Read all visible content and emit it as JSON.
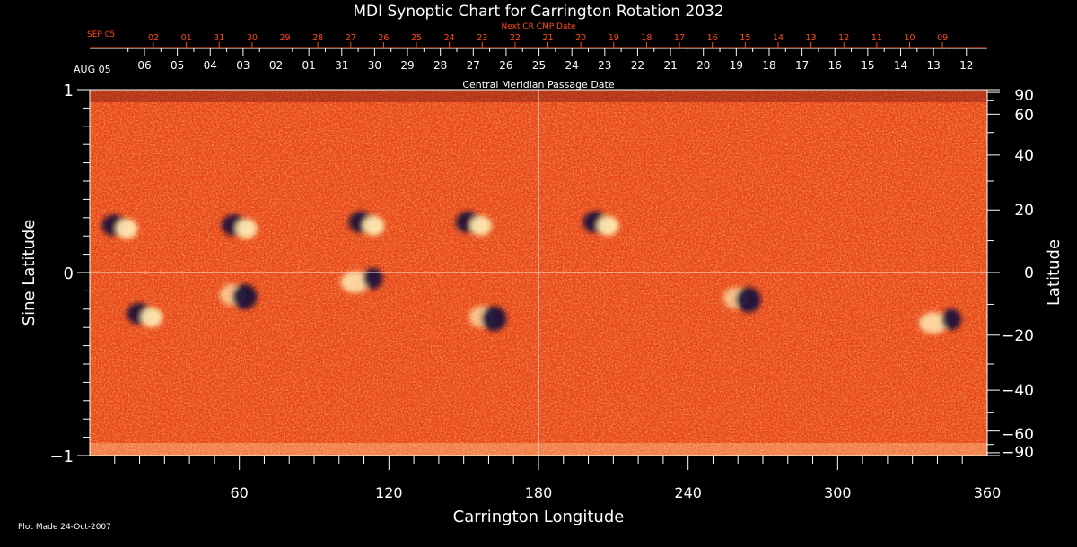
{
  "colors": {
    "background": "#000000",
    "foreground": "#ffffff",
    "accent_red": "#ff4a1c",
    "map_base": "#e8441a",
    "map_hot": "#ffe9b0",
    "map_dark": "#14103a"
  },
  "chart_data": {
    "type": "heatmap",
    "title": "MDI Synoptic Chart for Carrington Rotation 2032",
    "xlabel": "Carrington Longitude",
    "ylabel_left": "Sine Latitude",
    "ylabel_right": "Latitude",
    "xlim": [
      0,
      360
    ],
    "ylim_sine": [
      -1,
      1
    ],
    "x_ticks": [
      "60",
      "120",
      "180",
      "240",
      "300",
      "360"
    ],
    "y_ticks_left": [
      "1",
      "0",
      "−1"
    ],
    "y_ticks_right": [
      "90",
      "60",
      "40",
      "20",
      "0",
      "−20",
      "−40",
      "−60",
      "−90"
    ],
    "y_ticks_right_deg": [
      90,
      60,
      40,
      20,
      0,
      -20,
      -40,
      -60,
      -90
    ],
    "cmp_axis": {
      "label": "Central Meridian Passage Date",
      "start_label": "AUG 05",
      "dates": [
        "06",
        "05",
        "04",
        "03",
        "02",
        "01",
        "31",
        "30",
        "29",
        "28",
        "27",
        "26",
        "25",
        "24",
        "23",
        "22",
        "21",
        "20",
        "19",
        "18",
        "17",
        "16",
        "15",
        "14",
        "13",
        "12"
      ]
    },
    "next_cmp_axis": {
      "label": "Next CR CMP Date",
      "start_label": "SEP 05",
      "dates": [
        "02",
        "01",
        "31",
        "30",
        "29",
        "28",
        "27",
        "26",
        "25",
        "24",
        "23",
        "22",
        "21",
        "20",
        "19",
        "18",
        "17",
        "16",
        "15",
        "14",
        "13",
        "12",
        "11",
        "10",
        "09"
      ]
    },
    "active_regions": [
      {
        "lon": 12,
        "lat": 15,
        "pos": "light"
      },
      {
        "lon": 60,
        "lat": 15,
        "pos": "light"
      },
      {
        "lon": 111,
        "lat": 16,
        "pos": "light"
      },
      {
        "lon": 154,
        "lat": 16,
        "pos": "light"
      },
      {
        "lon": 205,
        "lat": 16,
        "pos": "light"
      },
      {
        "lon": 22,
        "lat": -13,
        "pos": "light"
      },
      {
        "lon": 60,
        "lat": -7,
        "pos": "dark"
      },
      {
        "lon": 110,
        "lat": -3,
        "pos": "mixed"
      },
      {
        "lon": 160,
        "lat": -14,
        "pos": "dark"
      },
      {
        "lon": 262,
        "lat": -8,
        "pos": "dark"
      },
      {
        "lon": 342,
        "lat": -16,
        "pos": "mixed"
      }
    ]
  },
  "footer": {
    "plot_made": "Plot Made 24-Oct-2007"
  }
}
